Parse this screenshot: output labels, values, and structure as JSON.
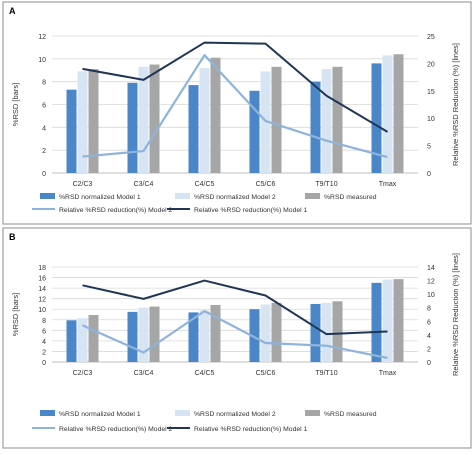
{
  "chart_data": [
    {
      "panel_label": "A",
      "type": "bar",
      "categories": [
        "C2/C3",
        "C3/C4",
        "C4/C5",
        "C5/C6",
        "T9/T10",
        "Tmax"
      ],
      "series": [
        {
          "name": "%RSD normalized Model 1",
          "kind": "bar",
          "axis": "left",
          "color": "#4a86c8",
          "values": [
            7.3,
            7.9,
            7.7,
            7.2,
            8.0,
            9.6
          ]
        },
        {
          "name": "%RSD normalized Model 2",
          "kind": "bar",
          "axis": "left",
          "color": "#d6e4f4",
          "values": [
            8.9,
            9.3,
            9.2,
            8.9,
            9.1,
            10.3
          ]
        },
        {
          "name": "%RSD measured",
          "kind": "bar",
          "axis": "left",
          "color": "#a6a6a6",
          "values": [
            9.1,
            9.5,
            10.1,
            9.3,
            9.3,
            10.4
          ]
        },
        {
          "name": "Relative %RSD reduction(%) Model 2",
          "kind": "line",
          "axis": "right",
          "color": "#8fb4dc",
          "values": [
            3.0,
            4.0,
            21.5,
            9.5,
            5.9,
            2.9
          ]
        },
        {
          "name": "Relative %RSD reduction(%) Model 1",
          "kind": "line",
          "axis": "right",
          "color": "#1f3656",
          "values": [
            19.0,
            17.0,
            23.8,
            23.6,
            14.1,
            7.5
          ]
        }
      ],
      "y_left": {
        "label": "%RSD [bars]",
        "min": 0,
        "max": 12,
        "ticks": [
          0,
          2,
          4,
          6,
          8,
          10,
          12
        ]
      },
      "y_right": {
        "label": "Relative %RSD Reduction (%) [lines]",
        "min": 0,
        "max": 25,
        "ticks": [
          0,
          5,
          10,
          15,
          20,
          25
        ]
      },
      "grid": true,
      "legend_position": "bottom"
    },
    {
      "panel_label": "B",
      "type": "bar",
      "categories": [
        "C2/C3",
        "C3/C4",
        "C4/C5",
        "C5/C6",
        "T9/T10",
        "Tmax"
      ],
      "series": [
        {
          "name": "%RSD normalized Model 1",
          "kind": "bar",
          "axis": "left",
          "color": "#4a86c8",
          "values": [
            7.9,
            9.5,
            9.4,
            10.0,
            11.0,
            15.0
          ]
        },
        {
          "name": "%RSD normalized Model 2",
          "kind": "bar",
          "axis": "left",
          "color": "#d6e4f4",
          "values": [
            8.3,
            10.3,
            9.8,
            10.9,
            11.2,
            15.6
          ]
        },
        {
          "name": "%RSD measured",
          "kind": "bar",
          "axis": "left",
          "color": "#a6a6a6",
          "values": [
            8.9,
            10.5,
            10.8,
            11.2,
            11.5,
            15.7
          ]
        },
        {
          "name": "Relative %RSD reduction(%) Model 2",
          "kind": "line",
          "axis": "right",
          "color": "#8fb4dc",
          "values": [
            5.4,
            1.4,
            7.5,
            2.8,
            2.4,
            0.6
          ]
        },
        {
          "name": "Relative %RSD reduction(%) Model 1",
          "kind": "line",
          "axis": "right",
          "color": "#1f3656",
          "values": [
            11.3,
            9.3,
            12.0,
            9.8,
            4.1,
            4.5
          ]
        }
      ],
      "y_left": {
        "label": "%RSD [bars]",
        "min": 0,
        "max": 18,
        "ticks": [
          0,
          2,
          4,
          6,
          8,
          10,
          12,
          14,
          16,
          18
        ]
      },
      "y_right": {
        "label": "Relative %RSD Reduction (%) [lines]",
        "min": 0,
        "max": 14,
        "ticks": [
          0,
          2,
          4,
          6,
          8,
          10,
          12,
          14
        ]
      },
      "grid": true,
      "legend_position": "bottom"
    }
  ]
}
